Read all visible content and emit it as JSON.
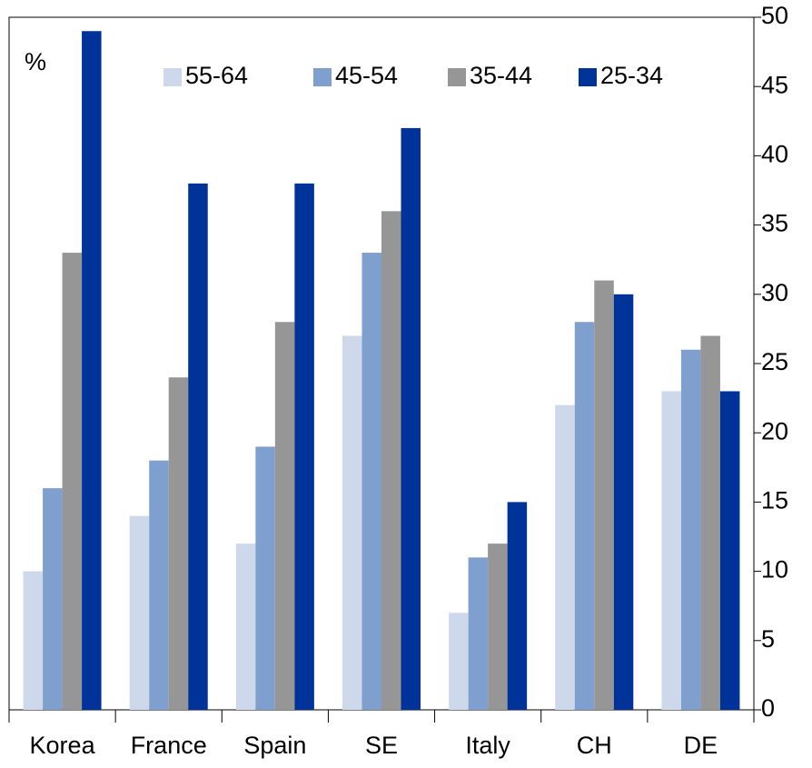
{
  "chart_data": {
    "type": "bar",
    "y_label": "%",
    "categories": [
      "Korea",
      "France",
      "Spain",
      "SE",
      "Italy",
      "CH",
      "DE"
    ],
    "series": [
      {
        "name": "55-64",
        "color": "#cdd8ea",
        "values": [
          10,
          14,
          12,
          27,
          7,
          22,
          23
        ]
      },
      {
        "name": "45-54",
        "color": "#7f9fcf",
        "values": [
          16,
          18,
          19,
          33,
          11,
          28,
          26
        ]
      },
      {
        "name": "35-44",
        "color": "#969696",
        "values": [
          33,
          24,
          28,
          36,
          12,
          31,
          27
        ]
      },
      {
        "name": "25-34",
        "color": "#003399",
        "values": [
          49,
          38,
          38,
          42,
          15,
          30,
          23
        ]
      }
    ],
    "ylim": [
      0,
      50
    ],
    "yticks": [
      0,
      5,
      10,
      15,
      20,
      25,
      30,
      35,
      40,
      45,
      50
    ],
    "y_axis_side": "right",
    "legend": "top",
    "grid": false
  }
}
